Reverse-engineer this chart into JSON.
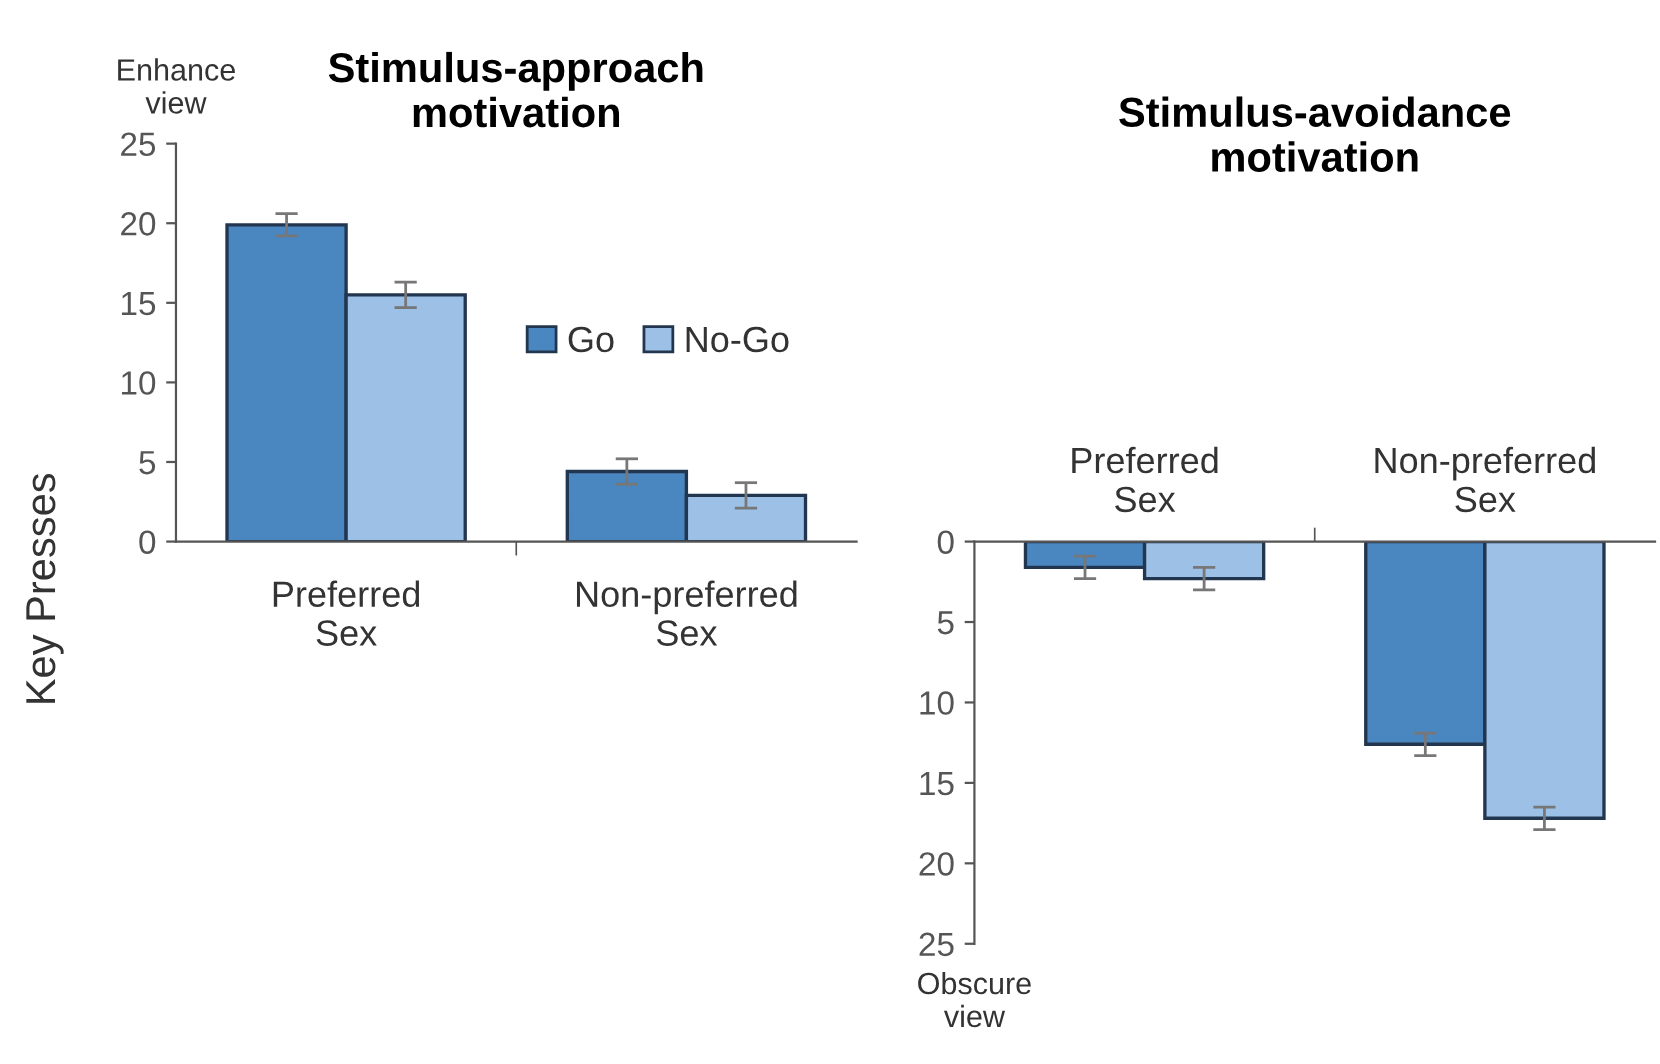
{
  "chart_data": [
    {
      "type": "bar",
      "title": "Stimulus-approach\nmotivation",
      "ylabel": "Key Presses",
      "categories": [
        "Preferred\nSex",
        "Non-preferred\nSex"
      ],
      "ylim": [
        0,
        25
      ],
      "yticks": [
        0,
        5,
        10,
        15,
        20,
        25
      ],
      "legend": "center right",
      "annotations": [
        "Enhance\nview"
      ],
      "series": [
        {
          "name": "Go",
          "color": "#4a86c0",
          "values": [
            19.9,
            4.4
          ],
          "errors": [
            0.7,
            0.8
          ]
        },
        {
          "name": "No-Go",
          "color": "#9dc0e6",
          "values": [
            15.5,
            2.9
          ],
          "errors": [
            0.8,
            0.8
          ]
        }
      ]
    },
    {
      "type": "bar",
      "title": "Stimulus-avoidance\nmotivation",
      "categories": [
        "Preferred\nSex",
        "Non-preferred\nSex"
      ],
      "ylim": [
        25,
        0
      ],
      "yticks": [
        0,
        5,
        10,
        15,
        20,
        25
      ],
      "annotations": [
        "Obscure\nview"
      ],
      "series": [
        {
          "color": "#4a86c0",
          "values": [
            1.6,
            12.6
          ],
          "errors": [
            0.7,
            0.7
          ]
        },
        {
          "color": "#9dc0e6",
          "values": [
            2.3,
            17.2
          ],
          "errors": [
            0.7,
            0.7
          ]
        }
      ]
    }
  ]
}
